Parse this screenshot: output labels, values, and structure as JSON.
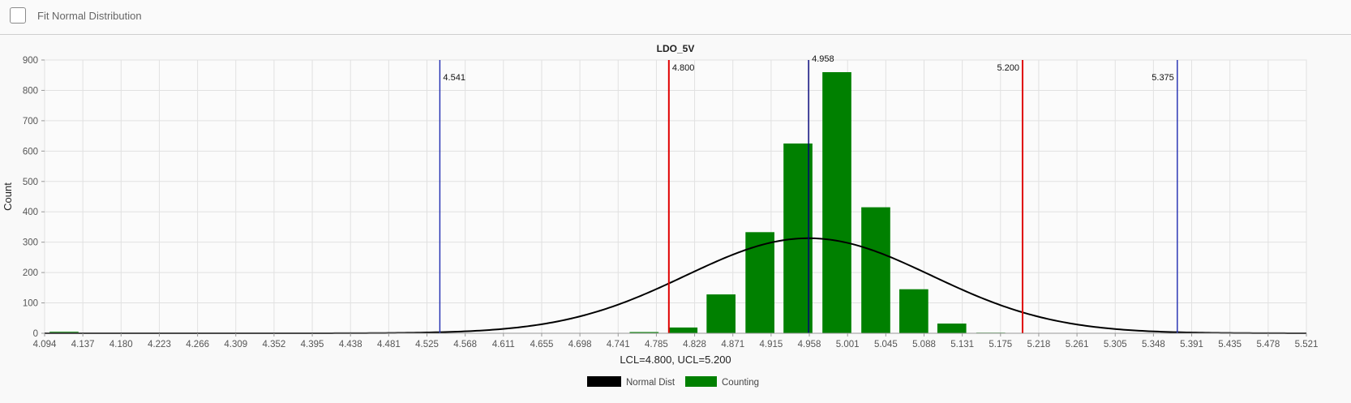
{
  "controls": {
    "fit_normal_label": "Fit Normal Distribution",
    "fit_normal_checked": false
  },
  "chart_data": {
    "type": "bar",
    "title": "LDO_5V",
    "xlabel": "LCL=4.800, UCL=5.200",
    "ylabel": "Count",
    "xlim": [
      4.094,
      5.521
    ],
    "ylim": [
      0,
      900
    ],
    "y_ticks": [
      0,
      100,
      200,
      300,
      400,
      500,
      600,
      700,
      800,
      900
    ],
    "x_ticks": [
      "4.094",
      "4.137",
      "4.180",
      "4.223",
      "4.266",
      "4.309",
      "4.352",
      "4.395",
      "4.438",
      "4.481",
      "4.525",
      "4.568",
      "4.611",
      "4.655",
      "4.698",
      "4.741",
      "4.785",
      "4.828",
      "4.871",
      "4.915",
      "4.958",
      "5.001",
      "5.045",
      "5.088",
      "5.131",
      "5.175",
      "5.218",
      "5.261",
      "5.305",
      "5.348",
      "5.391",
      "5.435",
      "5.478",
      "5.521"
    ],
    "grid": true,
    "bar_width": 0.0327,
    "series": [
      {
        "name": "Counting",
        "type": "bar",
        "color": "#008000",
        "points": [
          {
            "x": 4.116,
            "y": 5
          },
          {
            "x": 4.772,
            "y": 4
          },
          {
            "x": 4.816,
            "y": 19
          },
          {
            "x": 4.859,
            "y": 128
          },
          {
            "x": 4.903,
            "y": 333
          },
          {
            "x": 4.946,
            "y": 625
          },
          {
            "x": 4.99,
            "y": 860
          },
          {
            "x": 5.034,
            "y": 415
          },
          {
            "x": 5.077,
            "y": 145
          },
          {
            "x": 5.12,
            "y": 32
          },
          {
            "x": 5.164,
            "y": 2
          }
        ]
      },
      {
        "name": "Normal Dist",
        "type": "line",
        "color": "#000000",
        "mean": 4.958,
        "sigma": 0.1391,
        "peak": 313
      }
    ],
    "reference_lines": [
      {
        "x": 4.541,
        "label": "4.541",
        "color": "#1f2bb0",
        "label_side": "right",
        "label_y": 95
      },
      {
        "x": 4.8,
        "label": "4.800",
        "color": "#e00000",
        "label_side": "right",
        "label_y": 83
      },
      {
        "x": 4.958,
        "label": "4.958",
        "color": "#00007a",
        "label_side": "right",
        "label_y": 72
      },
      {
        "x": 5.2,
        "label": "5.200",
        "color": "#e00000",
        "label_side": "left",
        "label_y": 83
      },
      {
        "x": 5.375,
        "label": "5.375",
        "color": "#1f2bb0",
        "label_side": "left",
        "label_y": 95
      }
    ],
    "legend": {
      "position": "bottom-center",
      "items": [
        {
          "label": "Normal Dist",
          "color": "#000000"
        },
        {
          "label": "Counting",
          "color": "#008000"
        }
      ]
    }
  }
}
